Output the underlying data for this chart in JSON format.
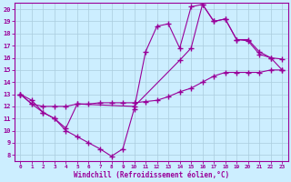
{
  "bg_color": "#cceeff",
  "line_color": "#990099",
  "grid_color": "#aaccdd",
  "xlabel": "Windchill (Refroidissement éolien,°C)",
  "xlim": [
    -0.5,
    23.5
  ],
  "ylim": [
    7.5,
    20.5
  ],
  "xticks": [
    0,
    1,
    2,
    3,
    4,
    5,
    6,
    7,
    8,
    9,
    10,
    11,
    12,
    13,
    14,
    15,
    16,
    17,
    18,
    19,
    20,
    21,
    22,
    23
  ],
  "yticks": [
    8,
    9,
    10,
    11,
    12,
    13,
    14,
    15,
    16,
    17,
    18,
    19,
    20
  ],
  "series1": [
    [
      0,
      13.0
    ],
    [
      1,
      12.5
    ],
    [
      2,
      11.5
    ],
    [
      3,
      11.0
    ],
    [
      4,
      10.0
    ],
    [
      5,
      9.5
    ],
    [
      6,
      9.0
    ],
    [
      7,
      8.5
    ],
    [
      8,
      7.9
    ],
    [
      9,
      8.5
    ],
    [
      10,
      11.8
    ],
    [
      11,
      16.5
    ],
    [
      12,
      18.6
    ],
    [
      13,
      18.8
    ],
    [
      14,
      16.8
    ],
    [
      15,
      20.2
    ],
    [
      16,
      20.4
    ],
    [
      17,
      19.0
    ],
    [
      18,
      19.2
    ],
    [
      19,
      17.5
    ],
    [
      20,
      17.4
    ],
    [
      21,
      16.3
    ],
    [
      22,
      16.0
    ],
    [
      23,
      15.0
    ]
  ],
  "series2": [
    [
      0,
      13.0
    ],
    [
      1,
      12.2
    ],
    [
      2,
      11.5
    ],
    [
      3,
      11.0
    ],
    [
      4,
      10.2
    ],
    [
      5,
      12.2
    ],
    [
      10,
      12.0
    ],
    [
      14,
      15.8
    ],
    [
      15,
      16.8
    ],
    [
      16,
      20.4
    ],
    [
      17,
      19.0
    ],
    [
      18,
      19.2
    ],
    [
      19,
      17.5
    ],
    [
      20,
      17.5
    ],
    [
      21,
      16.5
    ],
    [
      22,
      16.0
    ],
    [
      23,
      15.9
    ]
  ],
  "series3": [
    [
      0,
      13.0
    ],
    [
      1,
      12.2
    ],
    [
      2,
      12.0
    ],
    [
      3,
      12.0
    ],
    [
      4,
      12.0
    ],
    [
      5,
      12.2
    ],
    [
      6,
      12.2
    ],
    [
      7,
      12.3
    ],
    [
      8,
      12.3
    ],
    [
      9,
      12.3
    ],
    [
      10,
      12.3
    ],
    [
      11,
      12.4
    ],
    [
      12,
      12.5
    ],
    [
      13,
      12.8
    ],
    [
      14,
      13.2
    ],
    [
      15,
      13.5
    ],
    [
      16,
      14.0
    ],
    [
      17,
      14.5
    ],
    [
      18,
      14.8
    ],
    [
      19,
      14.8
    ],
    [
      20,
      14.8
    ],
    [
      21,
      14.8
    ],
    [
      22,
      15.0
    ],
    [
      23,
      15.0
    ]
  ]
}
